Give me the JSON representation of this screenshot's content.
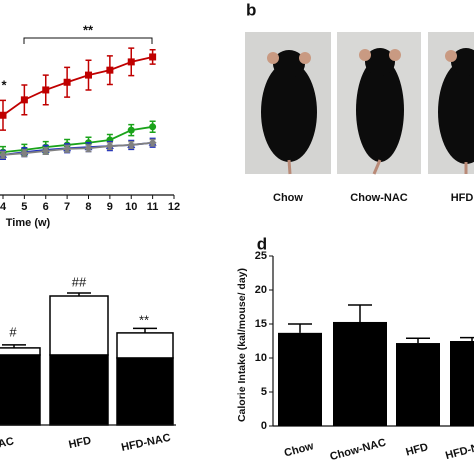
{
  "chart_data": [
    {
      "type": "line",
      "x_label": "Time (w)",
      "x": [
        4,
        5,
        6,
        7,
        8,
        9,
        10,
        11
      ],
      "xlim": [
        3.86,
        12
      ],
      "xticks": [
        4,
        5,
        6,
        7,
        8,
        9,
        10,
        11,
        12
      ],
      "ylim": [
        20,
        50
      ],
      "series": [
        {
          "color": "#c00000",
          "marker": "square",
          "values": [
            34.5,
            37.3,
            39.1,
            40.5,
            41.8,
            42.7,
            44.2,
            45.1
          ],
          "errors": [
            2.7,
            2.7,
            2.7,
            2.7,
            2.7,
            2.6,
            2.5,
            1.3
          ]
        },
        {
          "color": "#1aa31a",
          "marker": "circle",
          "values": [
            27.8,
            28.2,
            28.7,
            29.1,
            29.5,
            30.0,
            31.8,
            32.4
          ],
          "errors": [
            1.0,
            1.0,
            1.0,
            1.0,
            1.0,
            1.0,
            1.0,
            1.0
          ]
        },
        {
          "color": "#2030c0",
          "marker": "triangle",
          "values": [
            27.3,
            27.8,
            28.2,
            28.5,
            28.7,
            28.9,
            29.1,
            29.5
          ],
          "errors": [
            0.8,
            0.8,
            0.8,
            0.8,
            0.8,
            0.8,
            0.8,
            0.8
          ]
        },
        {
          "color": "#808080",
          "marker": "diamond",
          "values": [
            27.3,
            27.6,
            28.0,
            28.4,
            28.5,
            28.9,
            29.1,
            29.5
          ],
          "errors": [
            0.6,
            0.6,
            0.6,
            0.6,
            0.6,
            0.6,
            0.6,
            0.6
          ]
        }
      ],
      "annotations": [
        "*",
        "**"
      ]
    },
    {
      "type": "stacked_bar",
      "categories": [
        "AC",
        "HFD",
        "HFD-NAC"
      ],
      "ylim": [
        0,
        100
      ],
      "series": [
        {
          "color": "#000000",
          "values": [
            46.7,
            46.7,
            44.7
          ],
          "errors": [
            2,
            2,
            2
          ]
        },
        {
          "color": "#ffffff",
          "values": [
            4.7,
            39.3,
            16.7
          ],
          "errors": [
            2,
            2,
            3
          ]
        }
      ],
      "annotations": [
        "#",
        "##",
        "**"
      ]
    },
    {
      "type": "bar",
      "panel_label": "d",
      "y_label": "Calorie Intake (kal/mouse/ day)",
      "categories": [
        "Chow",
        "Chow-NAC",
        "HFD",
        "HFD-NAC"
      ],
      "values": [
        13.7,
        15.3,
        12.2,
        12.5
      ],
      "errors": [
        1.3,
        2.5,
        0.7,
        0.5
      ],
      "color": "#000000",
      "ylim": [
        0,
        25
      ],
      "yticks": [
        0,
        5,
        10,
        15,
        20,
        25
      ]
    }
  ],
  "photo_panel": {
    "label": "b",
    "captions": [
      "Chow",
      "Chow-NAC",
      "HFD"
    ]
  }
}
